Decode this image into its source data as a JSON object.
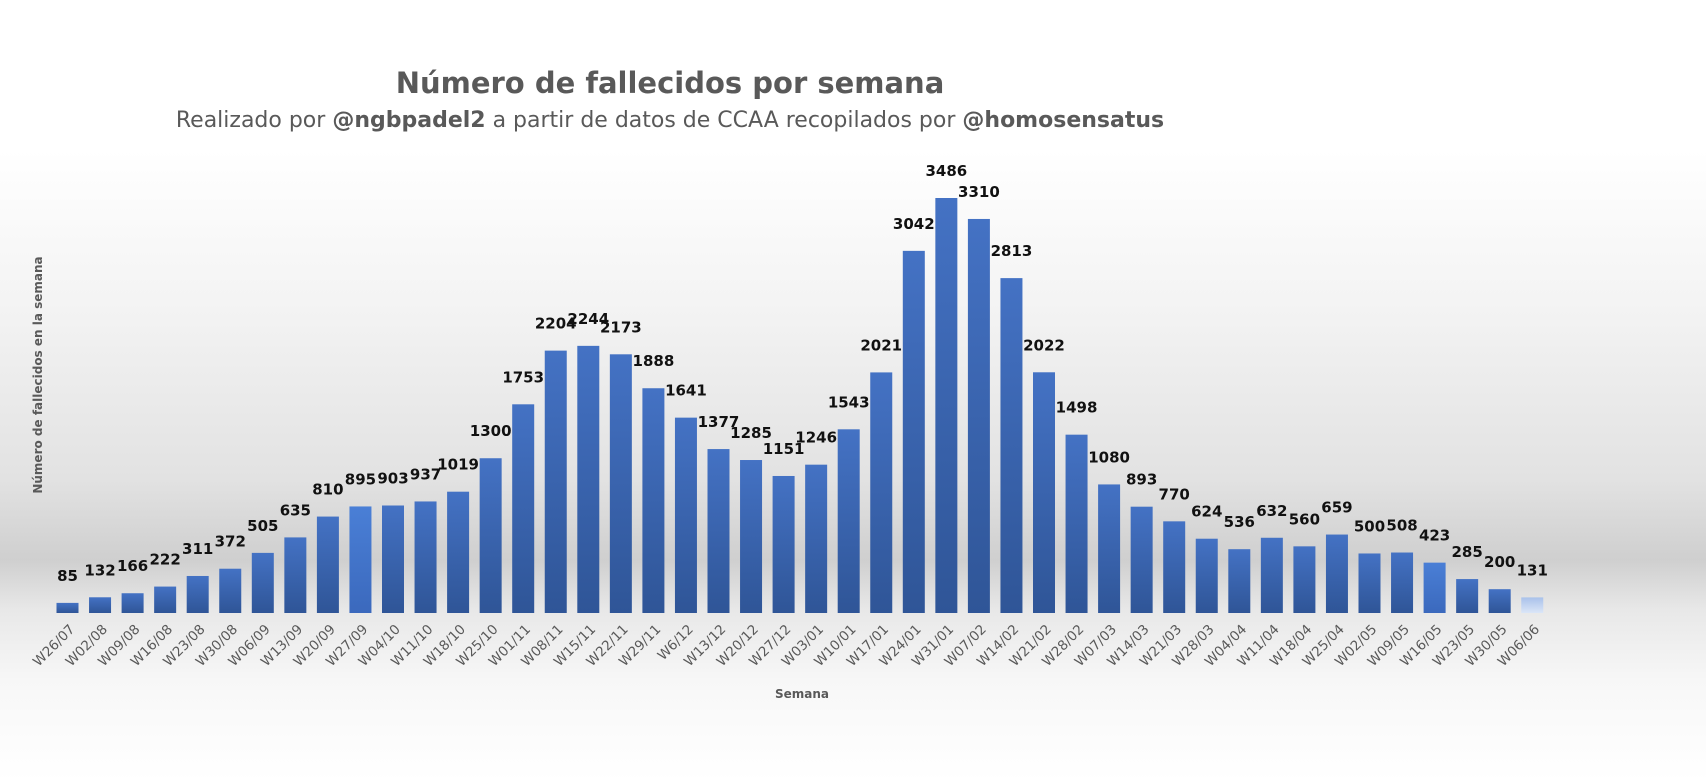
{
  "chart_data": {
    "type": "bar",
    "title": "Número de fallecidos por semana",
    "subtitle": [
      {
        "text": "Realizado por ",
        "bold": false
      },
      {
        "text": "@ngbpadel2",
        "bold": true
      },
      {
        "text": " a partir de datos de CCAA recopilados por ",
        "bold": false
      },
      {
        "text": "@homosensatus",
        "bold": true
      }
    ],
    "xlabel": "Semana",
    "ylabel": "Número de fallecidos en la semana",
    "categories": [
      "W26/07",
      "W02/08",
      "W09/08",
      "W16/08",
      "W23/08",
      "W30/08",
      "W06/09",
      "W13/09",
      "W20/09",
      "W27/09",
      "W04/10",
      "W11/10",
      "W18/10",
      "W25/10",
      "W01/11",
      "W08/11",
      "W15/11",
      "W22/11",
      "W29/11",
      "W6/12",
      "W13/12",
      "W20/12",
      "W27/12",
      "W03/01",
      "W10/01",
      "W17/01",
      "W24/01",
      "W31/01",
      "W07/02",
      "W14/02",
      "W21/02",
      "W28/02",
      "W07/03",
      "W14/03",
      "W21/03",
      "W28/03",
      "W04/04",
      "W11/04",
      "W18/04",
      "W25/04",
      "W02/05",
      "W09/05",
      "W16/05",
      "W23/05",
      "W30/05",
      "W06/06"
    ],
    "values": [
      85,
      132,
      166,
      222,
      311,
      372,
      505,
      635,
      810,
      895,
      903,
      937,
      1019,
      1300,
      1753,
      2204,
      2244,
      2173,
      1888,
      1641,
      1377,
      1285,
      1151,
      1246,
      1543,
      2021,
      3042,
      3486,
      3310,
      2813,
      2022,
      1498,
      1080,
      893,
      770,
      624,
      536,
      632,
      560,
      659,
      500,
      508,
      423,
      285,
      200,
      131
    ],
    "ylim": [
      0,
      3500
    ],
    "y_axis_visible": false,
    "grid": false,
    "data_labels": true,
    "colors": {
      "bar": "#4472c4",
      "bar_dark": "#2f5597",
      "highlight": "#4a7fd6",
      "last_faded": "#a9c1ea",
      "text": "#595959"
    }
  }
}
